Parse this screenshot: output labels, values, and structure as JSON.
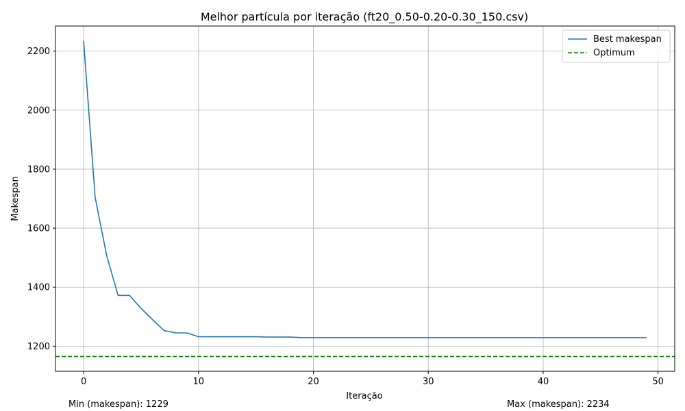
{
  "chart_data": {
    "type": "line",
    "title": "Melhor partícula por iteração (ft20_0.50-0.20-0.30_150.csv)",
    "xlabel": "Iteração",
    "ylabel": "Makespan",
    "xlim": [
      -2.45,
      51.45
    ],
    "ylim": [
      1115,
      2285
    ],
    "x_ticks": [
      0,
      10,
      20,
      30,
      40,
      50
    ],
    "y_ticks": [
      1200,
      1400,
      1600,
      1800,
      2000,
      2200
    ],
    "grid": true,
    "legend_position": "top-right",
    "series": [
      {
        "name": "Best makespan",
        "color": "#1f77b4",
        "style": "solid",
        "x": [
          0,
          1,
          2,
          3,
          4,
          5,
          6,
          7,
          8,
          9,
          10,
          11,
          12,
          13,
          14,
          15,
          16,
          17,
          18,
          19,
          20,
          21,
          22,
          23,
          24,
          25,
          26,
          27,
          28,
          29,
          30,
          31,
          32,
          33,
          34,
          35,
          36,
          37,
          38,
          39,
          40,
          41,
          42,
          43,
          44,
          45,
          46,
          47,
          48,
          49
        ],
        "y": [
          2234,
          1705,
          1508,
          1372,
          1372,
          1328,
          1290,
          1253,
          1245,
          1245,
          1232,
          1232,
          1232,
          1232,
          1232,
          1232,
          1231,
          1231,
          1231,
          1229,
          1229,
          1229,
          1229,
          1229,
          1229,
          1229,
          1229,
          1229,
          1229,
          1229,
          1229,
          1229,
          1229,
          1229,
          1229,
          1229,
          1229,
          1229,
          1229,
          1229,
          1229,
          1229,
          1229,
          1229,
          1229,
          1229,
          1229,
          1229,
          1229,
          1229
        ]
      },
      {
        "name": "Optimum",
        "color": "#008000",
        "style": "dashed",
        "hline": 1165
      }
    ],
    "annotations": {
      "min_text": "Min (makespan): 1229",
      "max_text": "Max (makespan): 2234"
    }
  }
}
